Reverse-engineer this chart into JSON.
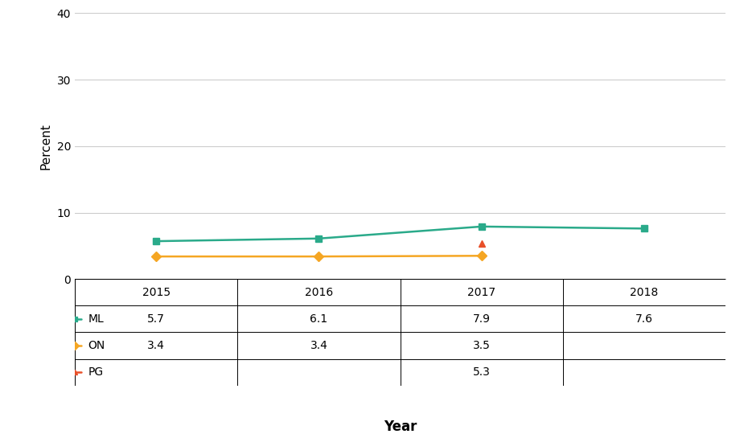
{
  "series": [
    {
      "label": "ML",
      "color": "#2aaa8a",
      "marker": "s",
      "x": [
        2015,
        2016,
        2017,
        2018
      ],
      "y": [
        5.7,
        6.1,
        7.9,
        7.6
      ],
      "yerr": [
        0.3,
        0.3,
        0.3,
        0.3
      ],
      "has_err": true
    },
    {
      "label": "ON",
      "color": "#f5a623",
      "marker": "D",
      "x": [
        2015,
        2016,
        2017
      ],
      "y": [
        3.4,
        3.4,
        3.5
      ],
      "yerr": [
        0,
        0,
        0
      ],
      "has_err": false
    },
    {
      "label": "PG",
      "color": "#e8502a",
      "marker": "^",
      "x": [
        2017
      ],
      "y": [
        5.3
      ],
      "yerr": [
        0
      ],
      "has_err": false
    }
  ],
  "ylabel": "Percent",
  "xlabel": "Year",
  "ylim": [
    0,
    40
  ],
  "yticks": [
    0,
    10,
    20,
    30,
    40
  ],
  "xticks": [
    2015,
    2016,
    2017,
    2018
  ],
  "xlim": [
    2014.5,
    2018.5
  ],
  "grid_color": "#cccccc",
  "background_color": "#ffffff",
  "table_rows": [
    "ML",
    "ON",
    "PG"
  ],
  "table_cols": [
    "",
    "2015",
    "2016",
    "2017",
    "2018"
  ],
  "table_values": [
    [
      "ML",
      "5.7",
      "6.1",
      "7.9",
      "7.6"
    ],
    [
      "ON",
      "3.4",
      "3.4",
      "3.5",
      ""
    ],
    [
      "PG",
      "",
      "",
      "5.3",
      ""
    ]
  ],
  "marker_size": 6,
  "line_width": 1.8,
  "error_capsize": 3,
  "error_linewidth": 1.2,
  "marker_size_table": 5,
  "table_fontsize": 10,
  "axis_fontsize": 11,
  "xlabel_fontsize": 12
}
